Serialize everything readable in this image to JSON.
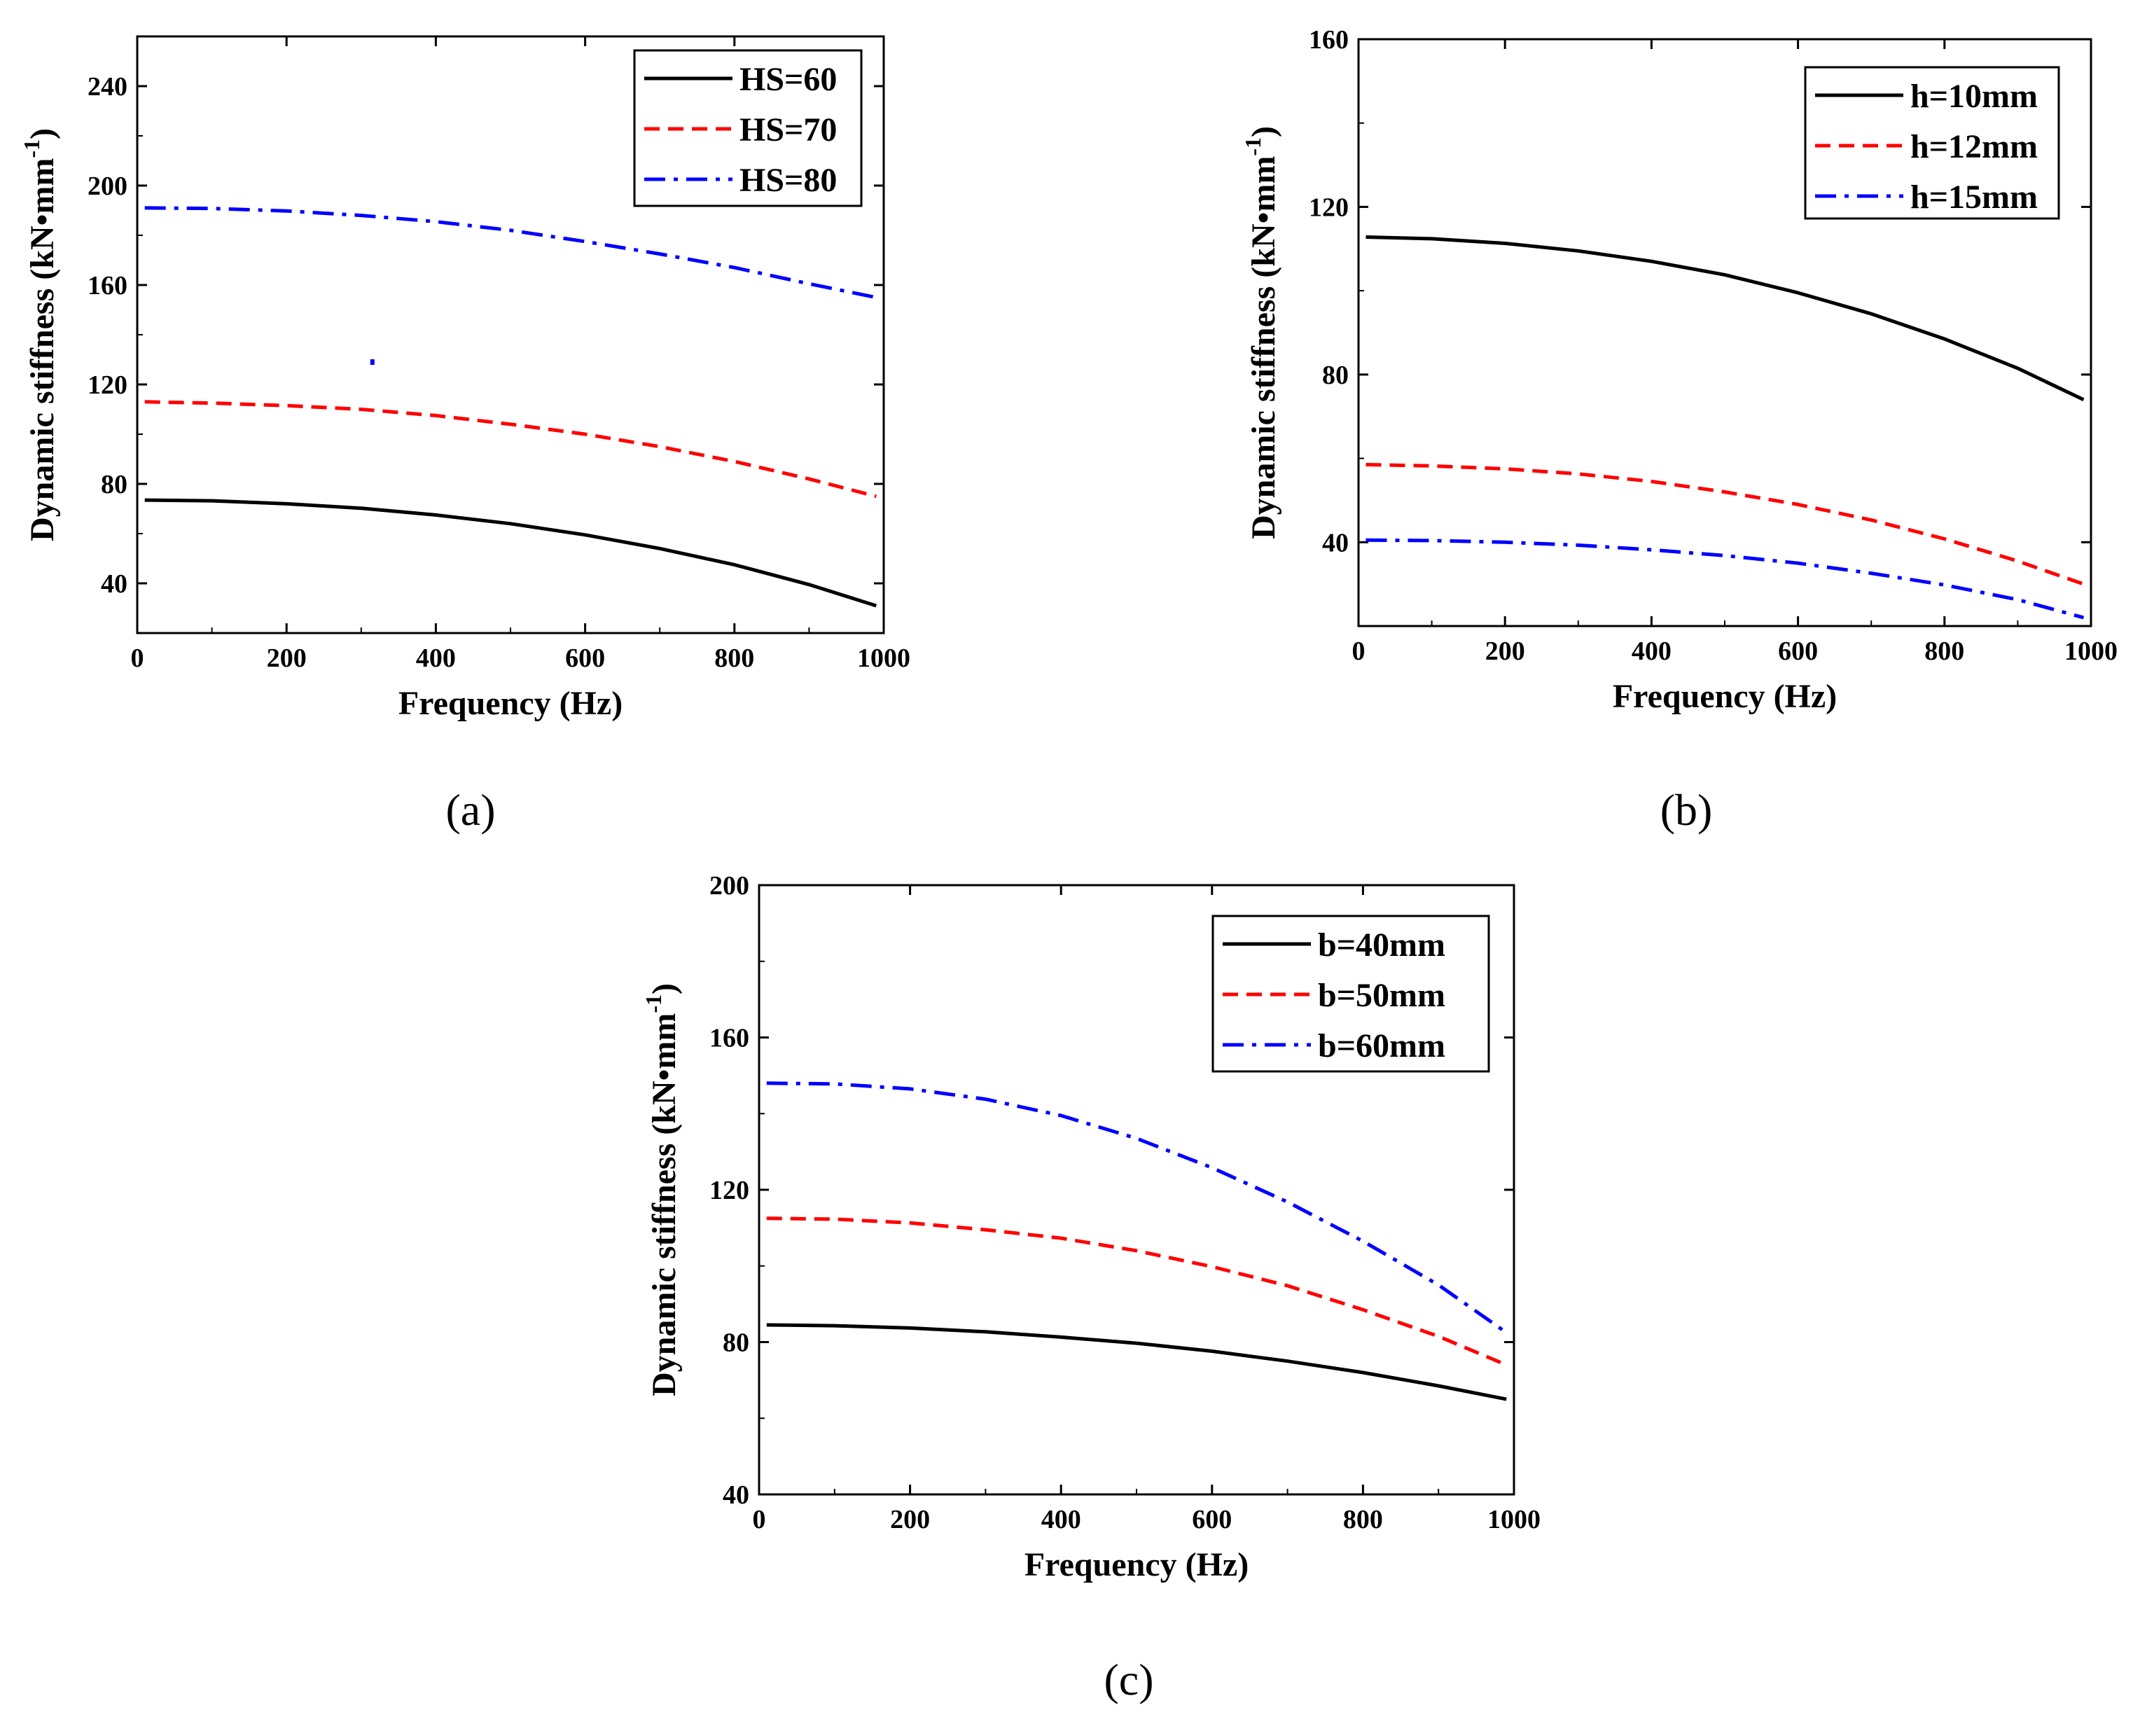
{
  "chart_data": [
    {
      "type": "line",
      "panel_label": "(a)",
      "xlabel": "Frequency (Hz)",
      "ylabel": "Dynamic stiffness (kN•mm",
      "ylabel_sup": "-1",
      "ylabel_close": ")",
      "xlim": [
        0,
        1000
      ],
      "ylim": [
        20,
        260
      ],
      "xticks": [
        0,
        200,
        400,
        600,
        800,
        1000
      ],
      "yticks": [
        40,
        80,
        120,
        160,
        200,
        240
      ],
      "legend_position": "top-right",
      "series": [
        {
          "name": "HS=60",
          "color": "#000000",
          "style": "solid",
          "x": [
            10,
            100,
            200,
            300,
            400,
            500,
            600,
            700,
            800,
            900,
            990
          ],
          "y": [
            73.5,
            73.2,
            72.0,
            70.2,
            67.5,
            64.0,
            59.5,
            54.0,
            47.5,
            39.5,
            31.0
          ]
        },
        {
          "name": "HS=70",
          "color": "#ff0000",
          "style": "dashed",
          "x": [
            10,
            100,
            200,
            300,
            400,
            500,
            600,
            700,
            800,
            900,
            990
          ],
          "y": [
            113.0,
            112.5,
            111.5,
            110.0,
            107.5,
            104.0,
            100.0,
            95.0,
            89.0,
            82.0,
            75.0
          ]
        },
        {
          "name": "HS=80",
          "color": "#0000ff",
          "style": "dashdot",
          "x": [
            10,
            100,
            200,
            300,
            400,
            500,
            600,
            700,
            800,
            900,
            990
          ],
          "y": [
            191.0,
            190.8,
            189.8,
            188.0,
            185.5,
            182.0,
            177.5,
            172.5,
            167.0,
            160.5,
            155.0
          ]
        }
      ],
      "outlier": {
        "x": 315,
        "y": 129,
        "color": "#0000ff"
      }
    },
    {
      "type": "line",
      "panel_label": "(b)",
      "xlabel": "Frequency (Hz)",
      "ylabel": "Dynamic stiffness (kN•mm",
      "ylabel_sup": "-1",
      "ylabel_close": ")",
      "xlim": [
        0,
        1000
      ],
      "ylim": [
        20,
        160
      ],
      "xticks": [
        0,
        200,
        400,
        600,
        800,
        1000
      ],
      "yticks": [
        40,
        80,
        120,
        160
      ],
      "legend_position": "top-right",
      "series": [
        {
          "name": "h=10mm",
          "color": "#000000",
          "style": "solid",
          "x": [
            10,
            100,
            200,
            300,
            400,
            500,
            600,
            700,
            800,
            900,
            990
          ],
          "y": [
            112.8,
            112.4,
            111.3,
            109.5,
            107.0,
            103.8,
            99.5,
            94.5,
            88.5,
            81.5,
            74.0
          ]
        },
        {
          "name": "h=12mm",
          "color": "#ff0000",
          "style": "dashed",
          "x": [
            10,
            100,
            200,
            300,
            400,
            500,
            600,
            700,
            800,
            900,
            990
          ],
          "y": [
            58.5,
            58.2,
            57.5,
            56.3,
            54.5,
            52.0,
            49.0,
            45.3,
            40.8,
            35.5,
            30.0
          ]
        },
        {
          "name": "h=15mm",
          "color": "#0000ff",
          "style": "dashdot",
          "x": [
            10,
            100,
            200,
            300,
            400,
            500,
            600,
            700,
            800,
            900,
            990
          ],
          "y": [
            40.5,
            40.4,
            40.0,
            39.3,
            38.2,
            36.8,
            35.0,
            32.6,
            29.8,
            26.3,
            22.0
          ]
        }
      ]
    },
    {
      "type": "line",
      "panel_label": "(c)",
      "xlabel": "Frequency (Hz)",
      "ylabel": "Dynamic stiffness (kN•mm",
      "ylabel_sup": "-1",
      "ylabel_close": ")",
      "xlim": [
        0,
        1000
      ],
      "ylim": [
        40,
        200
      ],
      "xticks": [
        0,
        200,
        400,
        600,
        800,
        1000
      ],
      "yticks": [
        40,
        80,
        120,
        160,
        200
      ],
      "legend_position": "top-right",
      "series": [
        {
          "name": "b=40mm",
          "color": "#000000",
          "style": "solid",
          "x": [
            10,
            100,
            200,
            300,
            400,
            500,
            600,
            700,
            800,
            900,
            990
          ],
          "y": [
            84.5,
            84.3,
            83.7,
            82.7,
            81.3,
            79.7,
            77.6,
            75.0,
            72.0,
            68.5,
            65.0
          ]
        },
        {
          "name": "b=50mm",
          "color": "#ff0000",
          "style": "dashed",
          "x": [
            10,
            100,
            200,
            300,
            400,
            500,
            600,
            700,
            800,
            900,
            990
          ],
          "y": [
            112.5,
            112.3,
            111.3,
            109.5,
            107.3,
            104.0,
            99.8,
            94.8,
            88.5,
            81.5,
            74.0
          ]
        },
        {
          "name": "b=60mm",
          "color": "#0000ff",
          "style": "dashdot",
          "x": [
            10,
            100,
            200,
            300,
            400,
            500,
            600,
            700,
            800,
            900,
            990
          ],
          "y": [
            148.0,
            147.8,
            146.5,
            143.8,
            139.5,
            133.5,
            125.8,
            116.8,
            106.5,
            95.0,
            82.5
          ]
        }
      ]
    }
  ]
}
